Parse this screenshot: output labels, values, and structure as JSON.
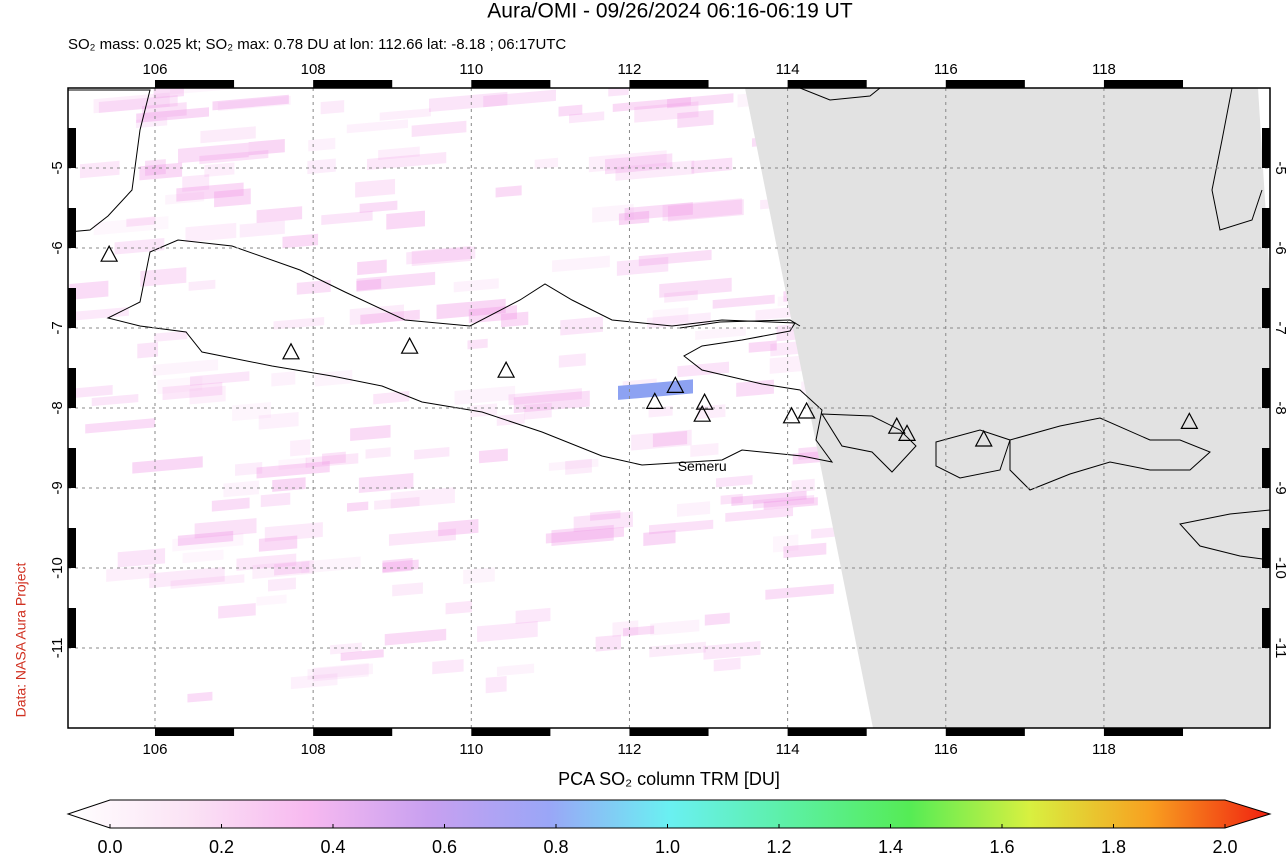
{
  "title": "Aura/OMI - 09/26/2024 06:16-06:19 UT",
  "subtitle": "SO₂ mass: 0.025 kt; SO₂ max: 0.78 DU at lon: 112.66 lat: -8.18 ; 06:17UTC",
  "credit": "Data: NASA Aura Project",
  "map": {
    "xlim": [
      104.9,
      120.1
    ],
    "ylim": [
      -12,
      -4
    ],
    "xticks": [
      106,
      108,
      110,
      112,
      114,
      116,
      118
    ],
    "yticks": [
      -5,
      -6,
      -7,
      -8,
      -9,
      -10,
      -11
    ],
    "grid": true,
    "volcanoes": [
      {
        "lon": 105.42,
        "lat": -6.09
      },
      {
        "lon": 107.72,
        "lat": -7.31
      },
      {
        "lon": 109.22,
        "lat": -7.24
      },
      {
        "lon": 110.44,
        "lat": -7.54
      },
      {
        "lon": 112.32,
        "lat": -7.93
      },
      {
        "lon": 112.58,
        "lat": -7.73
      },
      {
        "lon": 112.95,
        "lat": -7.94
      },
      {
        "name": "Semeru",
        "lon": 112.92,
        "lat": -8.09
      },
      {
        "lon": 114.05,
        "lat": -8.11
      },
      {
        "lon": 114.24,
        "lat": -8.05
      },
      {
        "lon": 115.38,
        "lat": -8.24
      },
      {
        "lon": 115.51,
        "lat": -8.33
      },
      {
        "lon": 116.48,
        "lat": -8.4
      },
      {
        "lon": 119.08,
        "lat": -8.18
      }
    ]
  },
  "colorbar": {
    "title": "PCA SO₂ column TRM [DU]",
    "lim": [
      0,
      2
    ],
    "ticks": [
      {
        "value": 0,
        "label": "0.0"
      },
      0.2,
      0.4,
      0.6,
      0.8,
      {
        "value": 1,
        "label": "1.0"
      },
      1.2,
      1.4,
      1.6,
      1.8,
      {
        "value": 2,
        "label": "2.0"
      }
    ]
  }
}
